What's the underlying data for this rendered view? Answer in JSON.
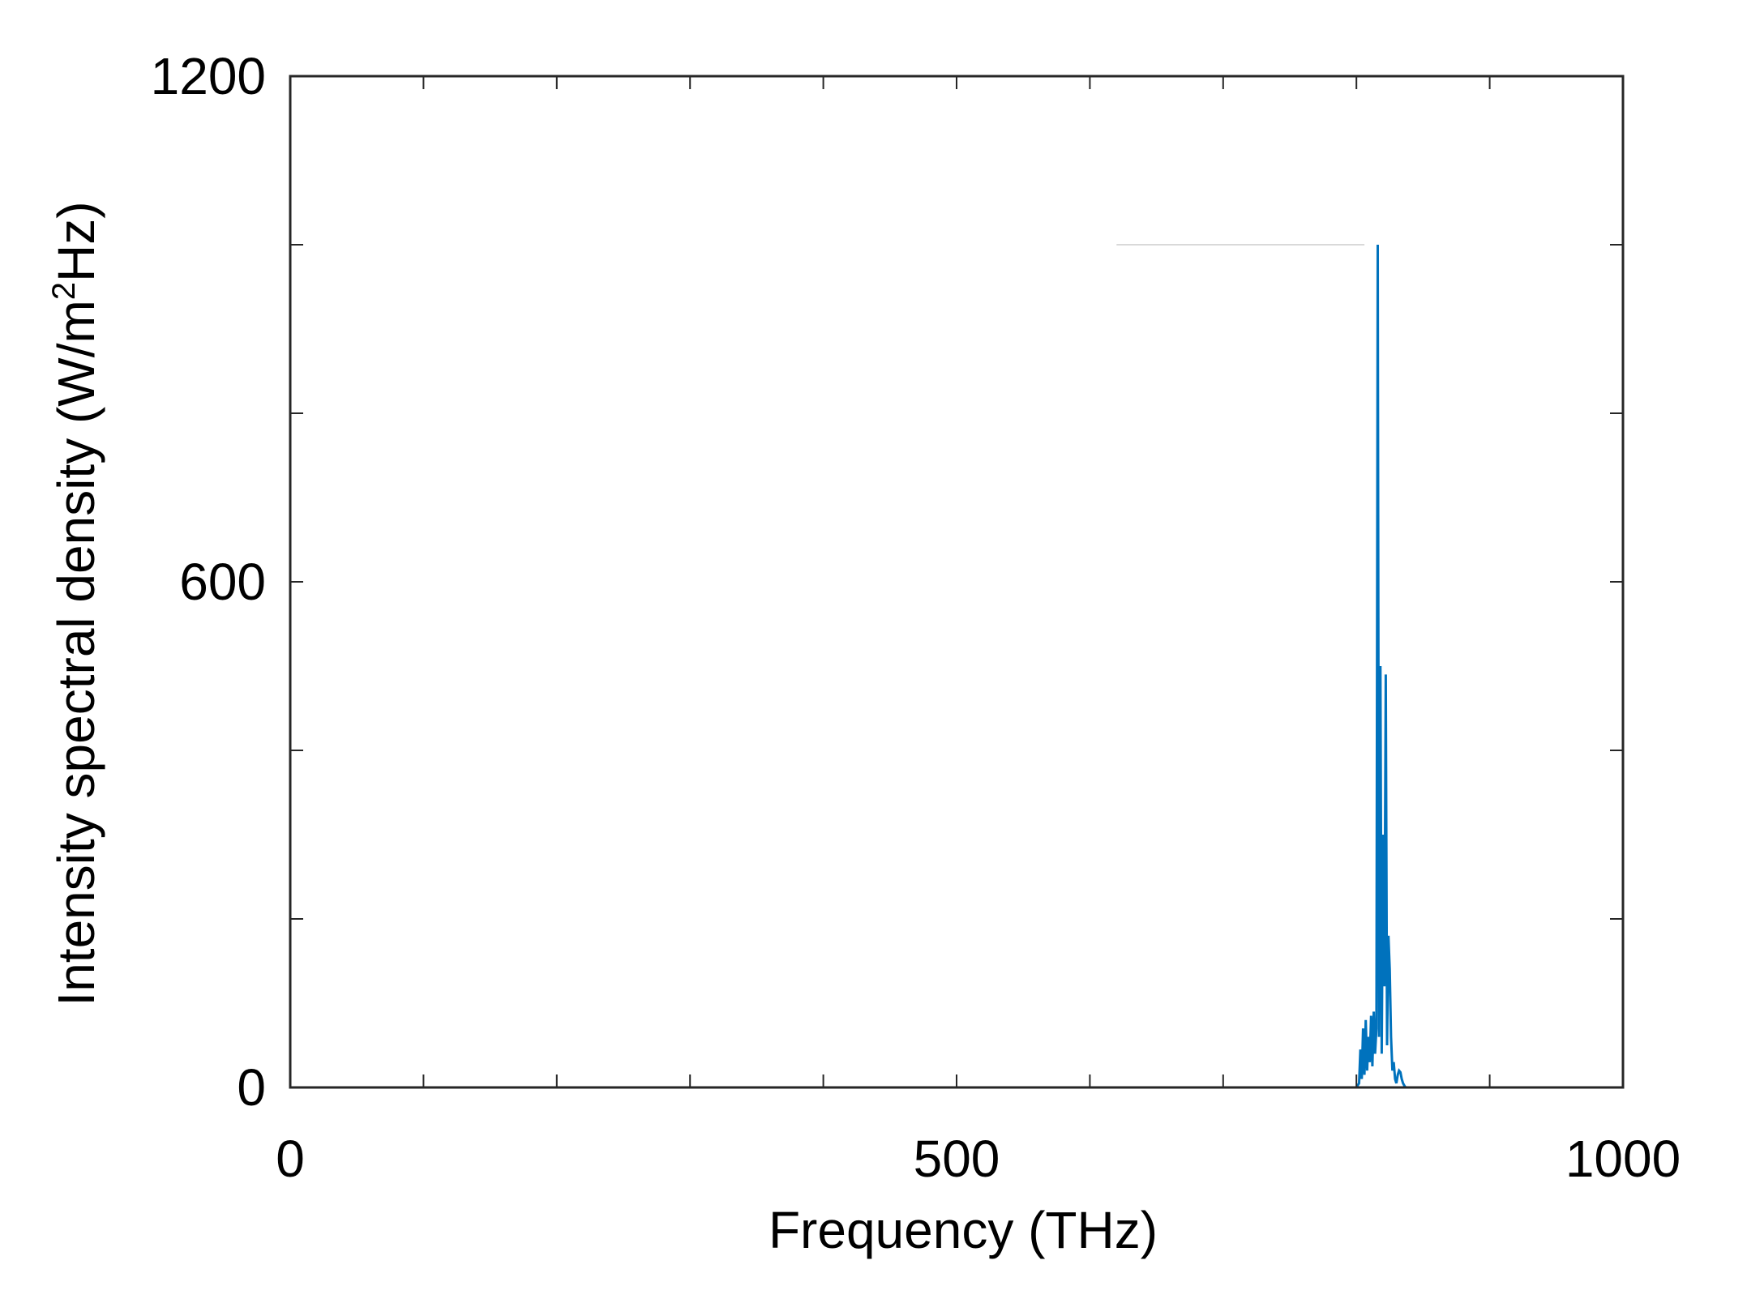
{
  "chart_data": {
    "type": "line",
    "title": "",
    "xlabel": "Frequency (THz)",
    "ylabel_parts": [
      "Intensity spectral density (W/m",
      "2",
      "Hz)"
    ],
    "xlim": [
      0,
      1000
    ],
    "ylim": [
      0,
      1200
    ],
    "xticks": [
      0,
      500,
      1000
    ],
    "yticks": [
      0,
      600,
      1200
    ],
    "minor_xticks": [
      100,
      200,
      300,
      400,
      600,
      700,
      800,
      900
    ],
    "minor_yticks": [
      200,
      400,
      800,
      1000
    ],
    "grid": false,
    "legend": "none",
    "colors": {
      "series": "#0072bd",
      "axes": "#262626",
      "reference_line": "#d9d9d9"
    },
    "reference_line": {
      "x": [
        620,
        806
      ],
      "y": [
        1000,
        1000
      ]
    },
    "series": [
      {
        "x": [
          0,
          800,
          802,
          803,
          804,
          805,
          806,
          807,
          808,
          809,
          810,
          811,
          812,
          813,
          814,
          815,
          816,
          817,
          818,
          819,
          820,
          821,
          822,
          823,
          824,
          825,
          826,
          827,
          828,
          829,
          830,
          831,
          832,
          833,
          834,
          835,
          836,
          837,
          838,
          839,
          840,
          841,
          842,
          843,
          844,
          845,
          846,
          1000
        ],
        "y": [
          0,
          0,
          5,
          45,
          10,
          70,
          15,
          80,
          20,
          60,
          30,
          85,
          25,
          90,
          40,
          70,
          1000,
          60,
          500,
          40,
          300,
          120,
          490,
          50,
          180,
          140,
          60,
          20,
          30,
          10,
          5,
          15,
          20,
          18,
          10,
          5,
          2,
          0,
          0,
          0,
          0,
          0,
          0,
          0,
          0,
          0,
          0,
          0
        ]
      }
    ]
  }
}
